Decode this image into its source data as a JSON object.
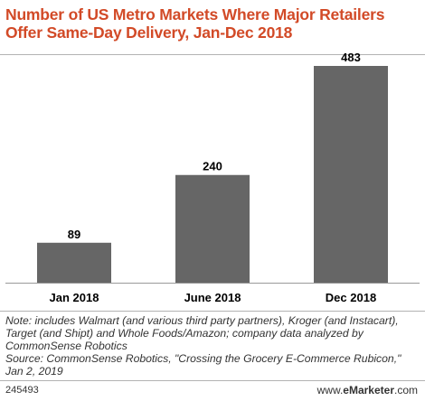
{
  "title": "Number of US Metro Markets Where Major Retailers Offer Same-Day Delivery, Jan-Dec 2018",
  "chart_data": {
    "type": "bar",
    "categories": [
      "Jan 2018",
      "June 2018",
      "Dec 2018"
    ],
    "values": [
      89,
      240,
      483
    ],
    "title": "Number of US Metro Markets Where Major Retailers Offer Same-Day Delivery, Jan-Dec 2018",
    "xlabel": "",
    "ylabel": "",
    "ylim": [
      0,
      483
    ],
    "grid": false,
    "legend": "none",
    "bar_color": "#666666"
  },
  "notes": {
    "note": "Note: includes Walmart (and various third party partners), Kroger (and Instacart), Target (and Shipt) and Whole Foods/Amazon; company data analyzed by CommonSense Robotics",
    "source": "Source: CommonSense Robotics, \"Crossing the Grocery E-Commerce Rubicon,\" Jan 2, 2019"
  },
  "footer": {
    "chart_id": "245493",
    "brand_prefix": "www.",
    "brand_name": "eMarketer",
    "brand_suffix": ".com"
  },
  "colors": {
    "title": "#d24a27",
    "bar": "#666666",
    "divider": "#b3b3b3"
  }
}
